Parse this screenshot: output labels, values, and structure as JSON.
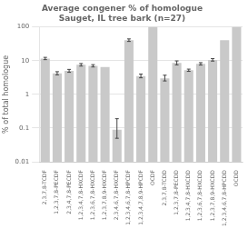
{
  "chart_data": {
    "type": "bar",
    "title": "Average congener % of homologue\nSauget, IL tree bark (n=27)",
    "ylabel": "% of total homologue",
    "categories": [
      "2,3,7,8-TCDF",
      "1,2,3,7,8-PECDF",
      "2,3,4,7,8-PECDF",
      "1,2,3,4,7,8-HXCDF",
      "1,2,3,6,7,8-HXCDF",
      "1,2,3,7,8,9-HXCDF",
      "2,3,4,6,7,8-HXCDF",
      "1,2,3,4,6,7,8-HPCDF",
      "1,2,3,4,7,8,9-HPCDF",
      "OCDF",
      "2,3,7,8-TCDD",
      "1,2,3,7,8-PECDD",
      "1,2,3,4,7,8-HXCDD",
      "1,2,3,6,7,8-HXCDD",
      "1,2,3,7,8,9-HXCDD",
      "1,2,3,4,6,7,8-HPCDD",
      "OCDD"
    ],
    "values": [
      11.5,
      4.2,
      5.0,
      7.5,
      7.0,
      6.5,
      0.09,
      40.0,
      3.5,
      100.0,
      3.0,
      8.5,
      5.2,
      8.0,
      10.5,
      40.0,
      100.0
    ],
    "error_low": [
      0.8,
      0.4,
      0.5,
      0.6,
      0.5,
      0.0,
      0.04,
      3.0,
      0.4,
      0.0,
      0.5,
      1.0,
      0.4,
      0.6,
      0.8,
      0.0,
      0.0
    ],
    "error_high": [
      1.0,
      0.5,
      0.5,
      0.7,
      0.6,
      0.0,
      0.1,
      4.0,
      0.5,
      0.0,
      0.7,
      1.3,
      0.4,
      0.7,
      1.0,
      0.0,
      0.0
    ],
    "color": "#c9c9c9",
    "log": "y",
    "ylim": [
      0.01,
      100
    ],
    "yticks": [
      0.01,
      0.1,
      1,
      10,
      100
    ],
    "grid": true
  }
}
